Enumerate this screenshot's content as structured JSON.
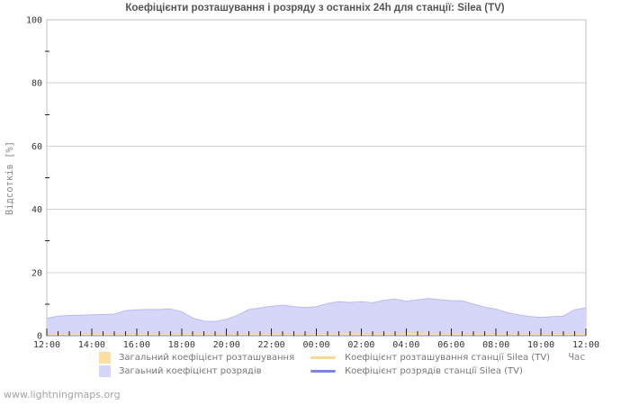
{
  "title": "Коефіцієнти розташування і розряду з останніх 24h для станції: Silea (TV)",
  "watermark": "www.lightningmaps.org",
  "axes": {
    "y_label": "Відсотків  [%]",
    "x_label": "Час"
  },
  "legend": {
    "items": [
      {
        "label": "Загальний коефіцієнт розташування",
        "swatch": "square",
        "color": "#fbdfa4"
      },
      {
        "label": "Загаьний коефіцієнт розрядів",
        "swatch": "square",
        "color": "#d6d7f8"
      },
      {
        "label": "Коефіцієнт розташування станції Silea (TV)",
        "swatch": "line",
        "color": "#f8d998"
      },
      {
        "label": "Коефіцієнт розрядів станції Silea (TV)",
        "swatch": "line",
        "color": "#7f85dd"
      }
    ]
  },
  "chart_data": {
    "type": "area",
    "title": "Коефіцієнти розташування і розряду з останніх 24h для станції: Silea (TV)",
    "xlabel": "Час",
    "ylabel": "Відсотків [%]",
    "ylim": [
      0,
      100
    ],
    "grid": "horizontal-major",
    "legend_position": "bottom",
    "time_start": "12:00",
    "time_step_minutes": 30,
    "x_tick_labels": [
      "12:00",
      "14:00",
      "16:00",
      "18:00",
      "20:00",
      "22:00",
      "00:00",
      "02:00",
      "04:00",
      "06:00",
      "08:00",
      "10:00",
      "12:00"
    ],
    "y_tick_values": [
      0,
      20,
      40,
      60,
      80,
      100
    ],
    "y_minor_tick_values": [
      10,
      30,
      50,
      70,
      90
    ],
    "x_major_every_minutes": 120,
    "x_minor_every_minutes": 30,
    "colors": {
      "grid": "#d0d0d0",
      "plot_border": "#c0c0c0",
      "tick": "#222222",
      "tick_label": "#333333",
      "discharge_fill": "#d6d7f8",
      "discharge_stroke": "#b8baf0",
      "location_fill": "#f9e3b4",
      "location_stroke": "#efd29a",
      "station_location_line": "#f8d998",
      "station_discharge_line": "#7f85dd"
    },
    "series": [
      {
        "name": "Загаьний коефіцієнт розрядів",
        "type": "area",
        "fill": "#d6d7f8",
        "stroke": "#b8baf0",
        "values": [
          5.5,
          6.2,
          6.4,
          6.5,
          6.6,
          6.7,
          6.8,
          7.9,
          8.2,
          8.3,
          8.3,
          8.5,
          7.6,
          5.6,
          4.6,
          4.5,
          5.2,
          6.5,
          8.3,
          8.8,
          9.3,
          9.7,
          9.2,
          8.9,
          9.2,
          10.2,
          10.8,
          10.5,
          10.8,
          10.4,
          11.2,
          11.6,
          10.9,
          11.3,
          11.8,
          11.4,
          11.1,
          11.0,
          10.0,
          9.0,
          8.4,
          7.3,
          6.6,
          6.1,
          5.8,
          6.0,
          6.2,
          8.2,
          8.8
        ]
      },
      {
        "name": "Загальний коефіцієнт розташування",
        "type": "area",
        "fill": "#f9e3b4",
        "stroke": "#efd29a",
        "values": [
          0.6,
          0.7,
          0.6,
          0.7,
          0.8,
          0.7,
          0.6,
          0.7,
          0.7,
          0.8,
          0.7,
          0.6,
          0.7,
          0.8,
          0.7,
          0.7,
          0.6,
          0.7,
          0.8,
          0.7,
          0.7,
          0.8,
          0.7,
          0.6,
          0.7,
          0.7,
          0.8,
          0.9,
          0.8,
          0.7,
          0.8,
          0.7,
          0.9,
          1.0,
          0.8,
          0.7,
          0.8,
          0.7,
          0.7,
          0.8,
          0.7,
          0.6,
          0.7,
          0.7,
          0.6,
          0.7,
          0.7,
          0.8,
          0.7
        ]
      },
      {
        "name": "Коефіцієнт розташування станції Silea (TV)",
        "type": "line",
        "stroke": "#f8d998",
        "constant_value": 0
      },
      {
        "name": "Коефіцієнт розрядів станції Silea (TV)",
        "type": "line",
        "stroke": "#7f85dd",
        "constant_value": 0
      }
    ]
  }
}
